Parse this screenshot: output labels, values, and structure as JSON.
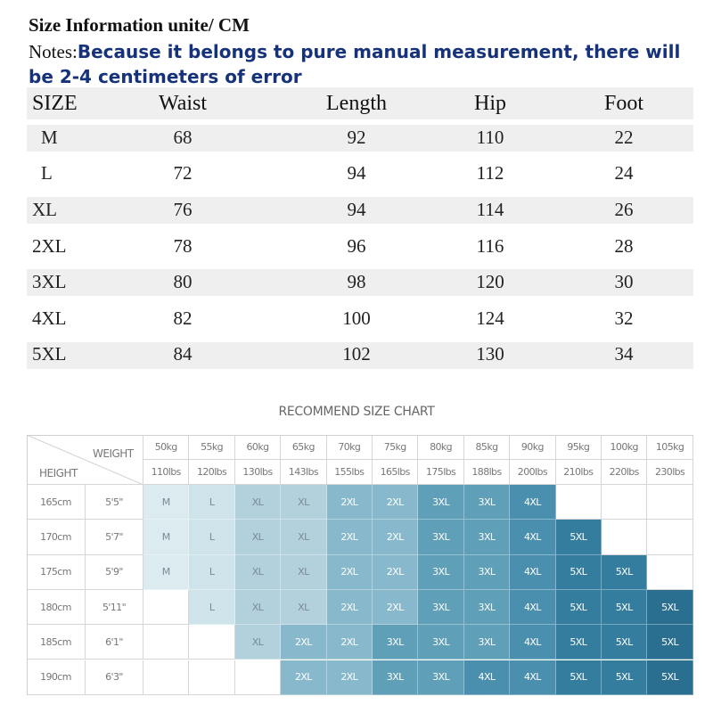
{
  "header": {
    "title": "Size Information unite/ CM",
    "notes_label": "Notes:",
    "notes_text": "Because it belongs to pure manual measurement, there will be 2-4 centimeters of error"
  },
  "size_table": {
    "columns": [
      "SIZE",
      "Waist",
      "Length",
      "Hip",
      "Foot"
    ],
    "rows": [
      [
        "M",
        "68",
        "92",
        "110",
        "22"
      ],
      [
        "L",
        "72",
        "94",
        "112",
        "24"
      ],
      [
        "XL",
        "76",
        "94",
        "114",
        "26"
      ],
      [
        "2XL",
        "78",
        "96",
        "116",
        "28"
      ],
      [
        "3XL",
        "80",
        "98",
        "120",
        "30"
      ],
      [
        "4XL",
        "82",
        "100",
        "124",
        "32"
      ],
      [
        "5XL",
        "84",
        "102",
        "130",
        "34"
      ]
    ]
  },
  "recommend_chart": {
    "title": "RECOMMEND SIZE CHART",
    "weight_label": "WEIGHT",
    "height_label": "HEIGHT",
    "weights_kg": [
      "50kg",
      "55kg",
      "60kg",
      "65kg",
      "70kg",
      "75kg",
      "80kg",
      "85kg",
      "90kg",
      "95kg",
      "100kg",
      "105kg"
    ],
    "weights_lbs": [
      "110lbs",
      "120lbs",
      "130lbs",
      "143lbs",
      "155lbs",
      "165lbs",
      "175lbs",
      "188lbs",
      "200lbs",
      "210lbs",
      "220lbs",
      "230lbs"
    ],
    "rows": [
      {
        "cm": "165cm",
        "ft": "5'5\"",
        "sizes": [
          "M",
          "L",
          "XL",
          "XL",
          "2XL",
          "2XL",
          "3XL",
          "3XL",
          "4XL",
          "",
          "",
          ""
        ]
      },
      {
        "cm": "170cm",
        "ft": "5'7\"",
        "sizes": [
          "M",
          "L",
          "XL",
          "XL",
          "2XL",
          "2XL",
          "3XL",
          "3XL",
          "4XL",
          "5XL",
          "",
          ""
        ]
      },
      {
        "cm": "175cm",
        "ft": "5'9\"",
        "sizes": [
          "M",
          "L",
          "XL",
          "XL",
          "2XL",
          "2XL",
          "3XL",
          "3XL",
          "4XL",
          "5XL",
          "5XL",
          ""
        ]
      },
      {
        "cm": "180cm",
        "ft": "5'11\"",
        "sizes": [
          "",
          "L",
          "XL",
          "XL",
          "2XL",
          "2XL",
          "3XL",
          "3XL",
          "4XL",
          "5XL",
          "5XL",
          "5XL"
        ]
      },
      {
        "cm": "185cm",
        "ft": "6'1\"",
        "sizes": [
          "",
          "",
          "XL",
          "2XL",
          "2XL",
          "3XL",
          "3XL",
          "3XL",
          "4XL",
          "5XL",
          "5XL",
          "5XL"
        ]
      },
      {
        "cm": "190cm",
        "ft": "6'3\"",
        "sizes": [
          "",
          "",
          "",
          "2XL",
          "2XL",
          "3XL",
          "3XL",
          "4XL",
          "4XL",
          "5XL",
          "5XL",
          "5XL"
        ]
      }
    ],
    "size_colors": {
      "M": "#dcebef",
      "L": "#cfe3ea",
      "XL": "#b3d1dd",
      "2XL": "#88b8cb",
      "3XL": "#5f9fb8",
      "4XL": "#4a8fae",
      "5XL": "#347d9e",
      "5XL-last": "#2a6f90"
    }
  }
}
